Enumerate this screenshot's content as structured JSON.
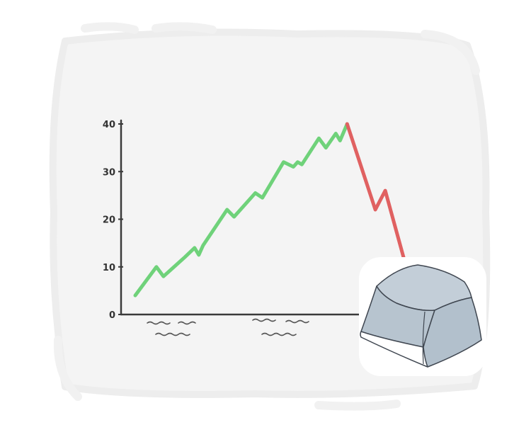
{
  "colors": {
    "rise": "#6fd27a",
    "fall": "#e06161",
    "axis": "#3a3a3a",
    "panel": "#f4f4f4",
    "key_top": "#c3ced8",
    "key_side": "#b9c6d1",
    "key_stroke": "#3f4650"
  },
  "icons": [
    "keyboard-key-icon"
  ],
  "chart_data": {
    "type": "line",
    "title": "",
    "xlabel": "",
    "ylabel": "",
    "ylim": [
      0,
      40
    ],
    "yticks": [
      0,
      10,
      20,
      30,
      40
    ],
    "ytick_labels": [
      "0",
      "10",
      "20",
      "30",
      "40"
    ],
    "xlim": [
      0,
      20
    ],
    "grid": false,
    "legend": "none",
    "series": [
      {
        "color": "#6fd27a",
        "x": [
          0,
          1.5,
          2,
          3.5,
          4.2,
          4.5,
          4.8,
          6.5,
          7,
          8.5,
          9,
          10.5,
          11.2,
          11.5,
          11.8,
          13,
          13.5,
          14.2,
          14.5,
          15
        ],
        "y": [
          4,
          10,
          8,
          12,
          14,
          12.5,
          14.5,
          22,
          20.5,
          25.5,
          24.5,
          32,
          31,
          32,
          31.5,
          37,
          35,
          38,
          36.5,
          40
        ]
      },
      {
        "color": "#e06161",
        "x": [
          15,
          17,
          17.7,
          19
        ],
        "y": [
          40,
          22,
          26,
          12
        ]
      }
    ]
  }
}
